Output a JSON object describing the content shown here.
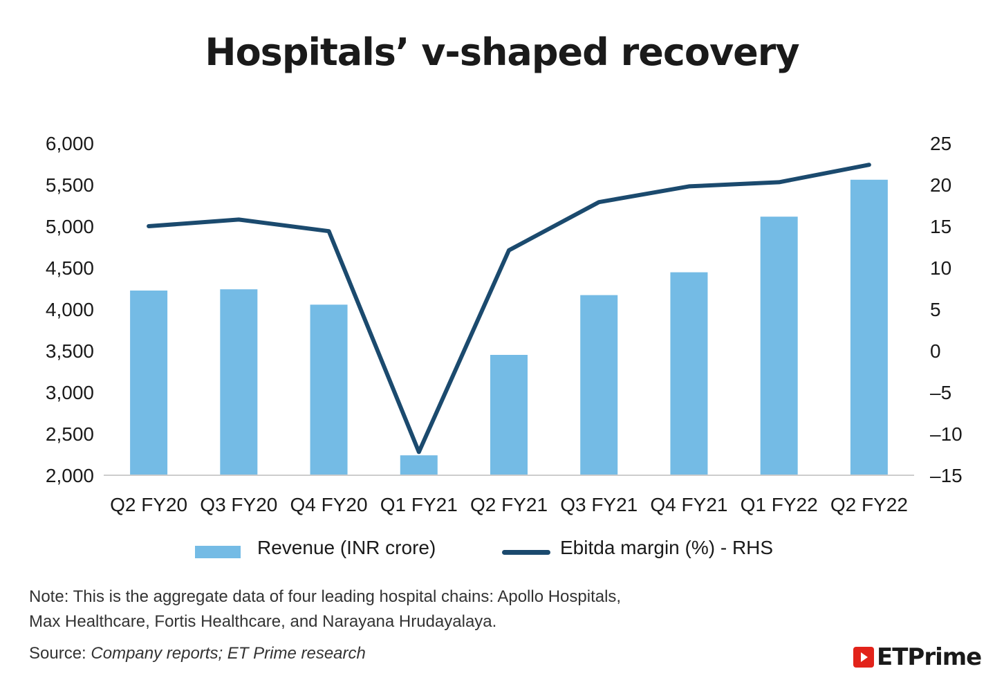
{
  "title": "Hospitals’ v-shaped recovery",
  "chart_data": {
    "type": "bar",
    "title": "Hospitals’ v-shaped recovery",
    "categories": [
      "Q2 FY20",
      "Q3 FY20",
      "Q4 FY20",
      "Q1 FY21",
      "Q2 FY21",
      "Q3 FY21",
      "Q4 FY21",
      "Q1 FY22",
      "Q2 FY22"
    ],
    "series": [
      {
        "name": "Revenue (INR crore)",
        "type": "bar",
        "axis": "left",
        "color": "#74bbe5",
        "values": [
          4225,
          4240,
          4055,
          2240,
          3450,
          4170,
          4445,
          5115,
          5560
        ]
      },
      {
        "name": "Ebitda margin (%) - RHS",
        "type": "line",
        "axis": "right",
        "color": "#1b4a6e",
        "values": [
          15.0,
          15.8,
          14.4,
          -12.2,
          12.1,
          17.9,
          19.8,
          20.3,
          22.4
        ]
      }
    ],
    "y_left": {
      "ticks": [
        "6,000",
        "5,500",
        "5,000",
        "4,500",
        "4,000",
        "3,500",
        "3,000",
        "2,500",
        "2,000"
      ],
      "ylim": [
        2000,
        6000
      ]
    },
    "y_right": {
      "ticks": [
        "25",
        "20",
        "15",
        "10",
        "5",
        "0",
        "–5",
        "–10",
        "–15"
      ],
      "ylim": [
        -15,
        25
      ]
    },
    "grid": false,
    "legend": "bottom"
  },
  "legend": {
    "bar_label": "Revenue (INR crore)",
    "line_label": "Ebitda margin (%) - RHS"
  },
  "note": {
    "line1": "Note: This is the aggregate data of four leading hospital chains: Apollo Hospitals,",
    "line2": "Max Healthcare, Fortis Healthcare, and Narayana Hrudayalaya."
  },
  "source": {
    "label": "Source:",
    "text": "Company reports; ET Prime research"
  },
  "logo": {
    "text": "ETPrime",
    "icon": "play-icon"
  }
}
